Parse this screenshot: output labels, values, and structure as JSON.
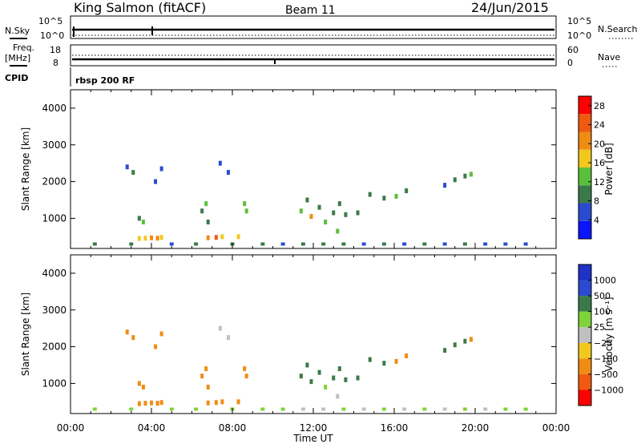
{
  "header": {
    "station": "King Salmon (fitACF)",
    "beam": "Beam 11",
    "date": "24/Jun/2015"
  },
  "params": {
    "nsky_label": "N.Sky",
    "nsearch_label": "N.Search",
    "freq_label_top": "Freq.",
    "freq_label_bottom": "[MHz]",
    "nave_label": "Nave",
    "cpid_label": "CPID",
    "cpid_value": "rbsp 200 RF",
    "noise_left_ticks": [
      "10^5",
      "10^0"
    ],
    "noise_right_ticks": [
      "10^5",
      "10^0"
    ],
    "freq_ticks": [
      "18",
      "8"
    ],
    "nave_ticks": [
      "60",
      "0"
    ]
  },
  "colors": {
    "power": [
      "#0a14ff",
      "#2a4bd0",
      "#3a7a4a",
      "#5bbf3c",
      "#f2c81e",
      "#f08c14",
      "#f05a10",
      "#ff0000"
    ],
    "velocity": [
      "#ff0000",
      "#f05a10",
      "#f08c14",
      "#f2c81e",
      "#c0c0c0",
      "#7ed33a",
      "#3a7a4a",
      "#2a4bd0",
      "#1e32c8"
    ]
  },
  "chart_data": [
    {
      "type": "heatmap",
      "name": "power",
      "xlabel": "",
      "ylabel": "Slant Range [km]",
      "xlim": [
        0,
        24
      ],
      "ylim": [
        180,
        4500
      ],
      "yticks": [
        1000,
        2000,
        3000,
        4000
      ],
      "colorbar": {
        "label": "Power [dB]",
        "ticks": [
          "4",
          "8",
          "12",
          "16",
          "20",
          "24",
          "28"
        ],
        "range": [
          0,
          30
        ]
      },
      "points": [
        {
          "t": 2.8,
          "r": 2400,
          "v": 6
        },
        {
          "t": 3.1,
          "r": 2250,
          "v": 8
        },
        {
          "t": 3.4,
          "r": 1000,
          "v": 10
        },
        {
          "t": 3.6,
          "r": 900,
          "v": 12
        },
        {
          "t": 3.4,
          "r": 450,
          "v": 16
        },
        {
          "t": 3.7,
          "r": 460,
          "v": 18
        },
        {
          "t": 4.0,
          "r": 470,
          "v": 20
        },
        {
          "t": 4.3,
          "r": 460,
          "v": 22
        },
        {
          "t": 4.5,
          "r": 480,
          "v": 18
        },
        {
          "t": 4.2,
          "r": 2000,
          "v": 6
        },
        {
          "t": 4.5,
          "r": 2350,
          "v": 6
        },
        {
          "t": 6.5,
          "r": 1200,
          "v": 10
        },
        {
          "t": 6.7,
          "r": 1400,
          "v": 12
        },
        {
          "t": 6.8,
          "r": 900,
          "v": 10
        },
        {
          "t": 6.8,
          "r": 470,
          "v": 22
        },
        {
          "t": 7.2,
          "r": 480,
          "v": 24
        },
        {
          "t": 7.5,
          "r": 500,
          "v": 18
        },
        {
          "t": 7.4,
          "r": 2500,
          "v": 6
        },
        {
          "t": 7.8,
          "r": 2250,
          "v": 6
        },
        {
          "t": 8.3,
          "r": 500,
          "v": 18
        },
        {
          "t": 8.6,
          "r": 1400,
          "v": 14
        },
        {
          "t": 8.7,
          "r": 1200,
          "v": 12
        },
        {
          "t": 11.4,
          "r": 1200,
          "v": 12
        },
        {
          "t": 11.7,
          "r": 1500,
          "v": 10
        },
        {
          "t": 11.9,
          "r": 1050,
          "v": 20
        },
        {
          "t": 12.3,
          "r": 1300,
          "v": 8
        },
        {
          "t": 12.6,
          "r": 900,
          "v": 12
        },
        {
          "t": 13.0,
          "r": 1150,
          "v": 10
        },
        {
          "t": 13.3,
          "r": 1400,
          "v": 10
        },
        {
          "t": 13.6,
          "r": 1100,
          "v": 8
        },
        {
          "t": 14.2,
          "r": 1150,
          "v": 8
        },
        {
          "t": 14.8,
          "r": 1650,
          "v": 10
        },
        {
          "t": 15.5,
          "r": 1550,
          "v": 10
        },
        {
          "t": 16.1,
          "r": 1600,
          "v": 12
        },
        {
          "t": 16.6,
          "r": 1750,
          "v": 10
        },
        {
          "t": 18.5,
          "r": 1900,
          "v": 6
        },
        {
          "t": 19.0,
          "r": 2050,
          "v": 8
        },
        {
          "t": 19.5,
          "r": 2150,
          "v": 10
        },
        {
          "t": 19.8,
          "r": 2200,
          "v": 12
        },
        {
          "t": 13.2,
          "r": 650,
          "v": 14
        },
        {
          "t": 1.2,
          "r": 300,
          "v": 8
        },
        {
          "t": 3.0,
          "r": 300,
          "v": 10
        },
        {
          "t": 5.0,
          "r": 300,
          "v": 6
        },
        {
          "t": 6.2,
          "r": 300,
          "v": 8
        },
        {
          "t": 8.0,
          "r": 300,
          "v": 10
        },
        {
          "t": 9.5,
          "r": 300,
          "v": 8
        },
        {
          "t": 10.5,
          "r": 300,
          "v": 6
        },
        {
          "t": 11.5,
          "r": 300,
          "v": 8
        },
        {
          "t": 12.5,
          "r": 300,
          "v": 10
        },
        {
          "t": 13.5,
          "r": 300,
          "v": 8
        },
        {
          "t": 14.5,
          "r": 300,
          "v": 6
        },
        {
          "t": 15.5,
          "r": 300,
          "v": 8
        },
        {
          "t": 16.5,
          "r": 300,
          "v": 6
        },
        {
          "t": 17.5,
          "r": 300,
          "v": 8
        },
        {
          "t": 18.5,
          "r": 300,
          "v": 6
        },
        {
          "t": 19.5,
          "r": 300,
          "v": 8
        },
        {
          "t": 20.5,
          "r": 300,
          "v": 6
        },
        {
          "t": 21.5,
          "r": 300,
          "v": 6
        },
        {
          "t": 22.5,
          "r": 300,
          "v": 4
        }
      ]
    },
    {
      "type": "heatmap",
      "name": "velocity",
      "xlabel": "Time UT",
      "ylabel": "Slant Range [km]",
      "xlim": [
        0,
        24
      ],
      "ylim": [
        180,
        4500
      ],
      "xticks": [
        "00:00",
        "04:00",
        "08:00",
        "12:00",
        "16:00",
        "20:00",
        "00:00"
      ],
      "yticks": [
        1000,
        2000,
        3000,
        4000
      ],
      "colorbar": {
        "label": "Velocity [m s⁻¹]",
        "ticks": [
          "1000",
          "500",
          "100",
          "25",
          "−25",
          "−100",
          "−500",
          "−1000"
        ],
        "range": [
          -1250,
          1250
        ]
      },
      "points": [
        {
          "t": 2.8,
          "r": 2400,
          "v": -200
        },
        {
          "t": 3.1,
          "r": 2250,
          "v": -150
        },
        {
          "t": 3.4,
          "r": 1000,
          "v": -300
        },
        {
          "t": 3.6,
          "r": 900,
          "v": -250
        },
        {
          "t": 3.4,
          "r": 450,
          "v": -150
        },
        {
          "t": 3.7,
          "r": 460,
          "v": -120
        },
        {
          "t": 4.0,
          "r": 470,
          "v": -100
        },
        {
          "t": 4.3,
          "r": 460,
          "v": -150
        },
        {
          "t": 4.5,
          "r": 480,
          "v": -120
        },
        {
          "t": 4.2,
          "r": 2000,
          "v": -200
        },
        {
          "t": 4.5,
          "r": 2350,
          "v": -150
        },
        {
          "t": 6.5,
          "r": 1200,
          "v": -400
        },
        {
          "t": 6.7,
          "r": 1400,
          "v": -450
        },
        {
          "t": 6.8,
          "r": 900,
          "v": -350
        },
        {
          "t": 6.8,
          "r": 470,
          "v": -150
        },
        {
          "t": 7.2,
          "r": 480,
          "v": -120
        },
        {
          "t": 7.5,
          "r": 500,
          "v": -100
        },
        {
          "t": 7.4,
          "r": 2500,
          "v": 0
        },
        {
          "t": 7.8,
          "r": 2250,
          "v": 0
        },
        {
          "t": 8.3,
          "r": 500,
          "v": -150
        },
        {
          "t": 8.6,
          "r": 1400,
          "v": -400
        },
        {
          "t": 8.7,
          "r": 1200,
          "v": -350
        },
        {
          "t": 11.4,
          "r": 1200,
          "v": 300
        },
        {
          "t": 11.7,
          "r": 1500,
          "v": 400
        },
        {
          "t": 11.9,
          "r": 1050,
          "v": 200
        },
        {
          "t": 12.3,
          "r": 1300,
          "v": 300
        },
        {
          "t": 12.6,
          "r": 900,
          "v": 100
        },
        {
          "t": 13.0,
          "r": 1150,
          "v": 150
        },
        {
          "t": 13.3,
          "r": 1400,
          "v": 300
        },
        {
          "t": 13.6,
          "r": 1100,
          "v": 200
        },
        {
          "t": 14.2,
          "r": 1150,
          "v": 150
        },
        {
          "t": 14.8,
          "r": 1650,
          "v": 300
        },
        {
          "t": 15.5,
          "r": 1550,
          "v": 150
        },
        {
          "t": 16.1,
          "r": 1600,
          "v": -150
        },
        {
          "t": 16.6,
          "r": 1750,
          "v": -200
        },
        {
          "t": 18.5,
          "r": 1900,
          "v": 500
        },
        {
          "t": 19.0,
          "r": 2050,
          "v": 300
        },
        {
          "t": 19.5,
          "r": 2150,
          "v": 400
        },
        {
          "t": 19.8,
          "r": 2200,
          "v": -200
        },
        {
          "t": 13.2,
          "r": 650,
          "v": 0
        },
        {
          "t": 1.2,
          "r": 300,
          "v": 60
        },
        {
          "t": 3.0,
          "r": 300,
          "v": 50
        },
        {
          "t": 5.0,
          "r": 300,
          "v": 80
        },
        {
          "t": 6.2,
          "r": 300,
          "v": 60
        },
        {
          "t": 8.0,
          "r": 300,
          "v": 50
        },
        {
          "t": 9.5,
          "r": 300,
          "v": 70
        },
        {
          "t": 10.5,
          "r": 300,
          "v": 50
        },
        {
          "t": 11.5,
          "r": 300,
          "v": 0
        },
        {
          "t": 12.5,
          "r": 300,
          "v": 0
        },
        {
          "t": 13.5,
          "r": 300,
          "v": 60
        },
        {
          "t": 14.5,
          "r": 300,
          "v": 0
        },
        {
          "t": 15.5,
          "r": 300,
          "v": 60
        },
        {
          "t": 16.5,
          "r": 300,
          "v": 0
        },
        {
          "t": 17.5,
          "r": 300,
          "v": 50
        },
        {
          "t": 18.5,
          "r": 300,
          "v": 0
        },
        {
          "t": 19.5,
          "r": 300,
          "v": 60
        },
        {
          "t": 20.5,
          "r": 300,
          "v": 0
        },
        {
          "t": 21.5,
          "r": 300,
          "v": 50
        },
        {
          "t": 22.5,
          "r": 300,
          "v": 40
        }
      ]
    }
  ]
}
